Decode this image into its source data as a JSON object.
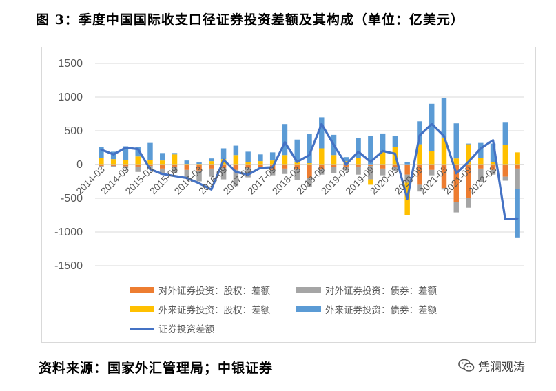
{
  "figure_title": "图 3：季度中国国际收支口径证券投资差额及其构成（单位：亿美元）",
  "source_note": "资料来源：国家外汇管理局；中银证券",
  "watermark": {
    "text": "凭澜观涛",
    "icon": "wechat-icon"
  },
  "colors": {
    "s1": "#ED7D31",
    "s2": "#A5A5A5",
    "s3": "#FFC000",
    "s4": "#5B9BD5",
    "line": "#4472C4",
    "grid": "#D9D9D9"
  },
  "chart_data": {
    "type": "bar",
    "stacked": true,
    "ylim": [
      -1500,
      1500
    ],
    "yticks": [
      1500,
      1000,
      500,
      0,
      -500,
      -1000,
      -1500
    ],
    "ytick_labels": [
      "1500",
      "1000",
      "500",
      "0",
      "-500",
      "-1000",
      "-1500"
    ],
    "grid": true,
    "legend_position": "bottom",
    "xtick_labels": [
      "2014-03",
      "2014-09",
      "2015-03",
      "2015-09",
      "2016-03",
      "2016-09",
      "2017-03",
      "2017-09",
      "2018-03",
      "2018-09",
      "2019-03",
      "2019-09",
      "2020-03",
      "2020-09",
      "2021-03",
      "2021-09",
      "2022-03"
    ],
    "categories": [
      "2014-03",
      "2014-06",
      "2014-09",
      "2014-12",
      "2015-03",
      "2015-06",
      "2015-09",
      "2015-12",
      "2016-03",
      "2016-06",
      "2016-09",
      "2016-12",
      "2017-03",
      "2017-06",
      "2017-09",
      "2017-12",
      "2018-03",
      "2018-06",
      "2018-09",
      "2018-12",
      "2019-03",
      "2019-06",
      "2019-09",
      "2019-12",
      "2020-03",
      "2020-06",
      "2020-09",
      "2020-12",
      "2021-03",
      "2021-06",
      "2021-09",
      "2021-12",
      "2022-03",
      "2022-06",
      "2022-09"
    ],
    "series": [
      {
        "name": "对外证券投资：股权：差额",
        "kind": "bar",
        "values": [
          -20,
          -20,
          -25,
          -30,
          -20,
          -60,
          -30,
          -80,
          -90,
          -60,
          -50,
          -80,
          -50,
          -40,
          -80,
          -60,
          -70,
          -200,
          -70,
          -40,
          -30,
          -30,
          -20,
          -60,
          -40,
          -150,
          -300,
          -80,
          -350,
          -560,
          -500,
          -60,
          -80,
          -180,
          -60
        ]
      },
      {
        "name": "对外证券投资：债券：差额",
        "kind": "bar",
        "values": [
          -10,
          -10,
          -30,
          -80,
          -50,
          -90,
          -100,
          -130,
          -160,
          -120,
          -170,
          -240,
          -140,
          -30,
          -80,
          -80,
          -160,
          -130,
          -80,
          -90,
          -60,
          -120,
          -200,
          -100,
          -60,
          -120,
          -100,
          -80,
          -20,
          -150,
          -140,
          -200,
          -70,
          -60,
          -300
        ]
      },
      {
        "name": "外来证券投资：股权：差额",
        "kind": "bar",
        "values": [
          100,
          80,
          70,
          120,
          70,
          60,
          150,
          10,
          10,
          50,
          80,
          140,
          40,
          50,
          60,
          140,
          30,
          20,
          240,
          140,
          50,
          100,
          -80,
          200,
          260,
          -480,
          300,
          200,
          400,
          90,
          300,
          100,
          40,
          290,
          180
        ]
      },
      {
        "name": "外来证券投资：债券：差额",
        "kind": "bar",
        "values": [
          160,
          110,
          200,
          140,
          250,
          110,
          20,
          50,
          20,
          40,
          160,
          140,
          150,
          100,
          120,
          460,
          340,
          430,
          460,
          300,
          60,
          290,
          420,
          260,
          160,
          40,
          340,
          700,
          590,
          520,
          10,
          220,
          270,
          340,
          -730
        ]
      },
      {
        "name": "证券投资差额",
        "kind": "line",
        "values": [
          220,
          150,
          250,
          230,
          -70,
          -140,
          -170,
          -200,
          -280,
          -370,
          70,
          -110,
          -150,
          -50,
          -40,
          330,
          40,
          140,
          600,
          290,
          0,
          190,
          40,
          200,
          160,
          -510,
          430,
          600,
          420,
          -130,
          40,
          240,
          360,
          -810,
          -800
        ]
      }
    ]
  }
}
